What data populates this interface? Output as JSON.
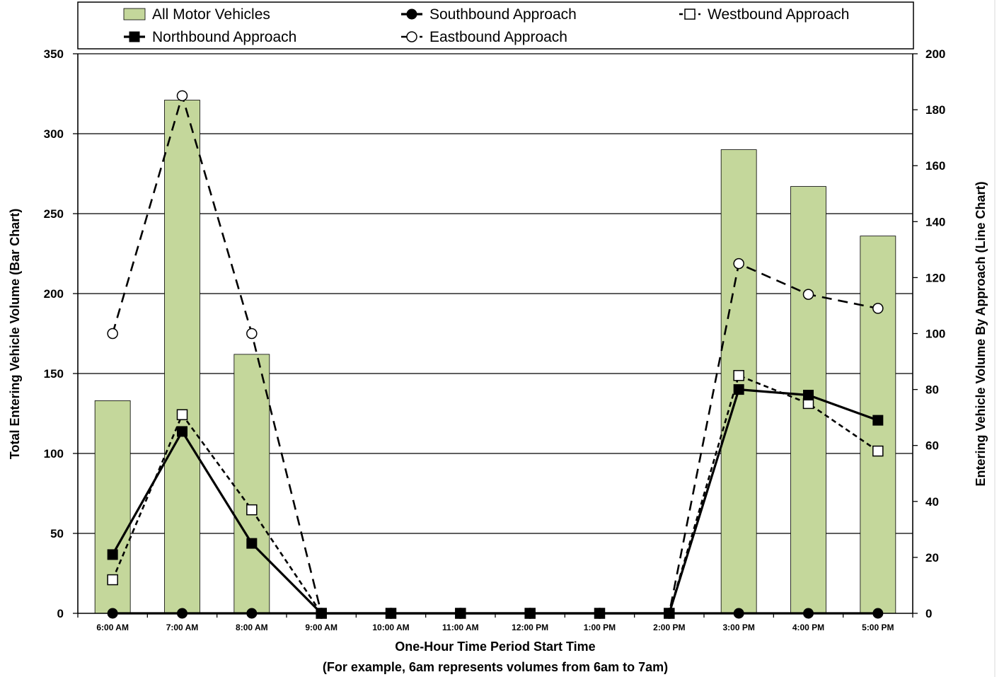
{
  "chart_data": {
    "type": "bar+line",
    "categories": [
      "6:00 AM",
      "7:00 AM",
      "8:00 AM",
      "9:00 AM",
      "10:00 AM",
      "11:00 AM",
      "12:00 PM",
      "1:00 PM",
      "2:00 PM",
      "3:00 PM",
      "4:00 PM",
      "5:00 PM"
    ],
    "bar_series": {
      "name": "All Motor Vehicles",
      "axis": "left",
      "color": "#c4d79b",
      "values": [
        133,
        321,
        162,
        0,
        0,
        0,
        0,
        0,
        0,
        290,
        267,
        236
      ]
    },
    "line_series": [
      {
        "name": "Northbound Approach",
        "axis": "right",
        "marker": "square-filled",
        "line": "solid",
        "values": [
          21,
          65,
          25,
          0,
          0,
          0,
          0,
          0,
          0,
          80,
          78,
          69
        ]
      },
      {
        "name": "Southbound Approach",
        "axis": "right",
        "marker": "circle-filled",
        "line": "solid",
        "values": [
          0,
          0,
          0,
          0,
          0,
          0,
          0,
          0,
          0,
          0,
          0,
          0
        ]
      },
      {
        "name": "Eastbound Approach",
        "axis": "right",
        "marker": "circle-open",
        "line": "long-dash",
        "values": [
          100,
          185,
          100,
          0,
          0,
          0,
          0,
          0,
          0,
          125,
          114,
          109
        ]
      },
      {
        "name": "Westbound Approach",
        "axis": "right",
        "marker": "square-open",
        "line": "short-dash",
        "values": [
          12,
          71,
          37,
          0,
          0,
          0,
          0,
          0,
          0,
          85,
          75,
          58
        ]
      }
    ],
    "y_left": {
      "label": "Total Entering Vehicle Volume (Bar Chart)",
      "ylim": [
        0,
        350
      ],
      "ticks": [
        0,
        50,
        100,
        150,
        200,
        250,
        300,
        350
      ]
    },
    "y_right": {
      "label": "Entering Vehicle Volume By Approach (Line Chart)",
      "ylim": [
        0,
        200
      ],
      "ticks": [
        0,
        20,
        40,
        60,
        80,
        100,
        120,
        140,
        160,
        180,
        200
      ]
    },
    "xlabel_line1": "One-Hour Time Period Start Time",
    "xlabel_line2": "(For example, 6am represents volumes from 6am to 7am)",
    "grid": true,
    "legend_position": "top"
  }
}
